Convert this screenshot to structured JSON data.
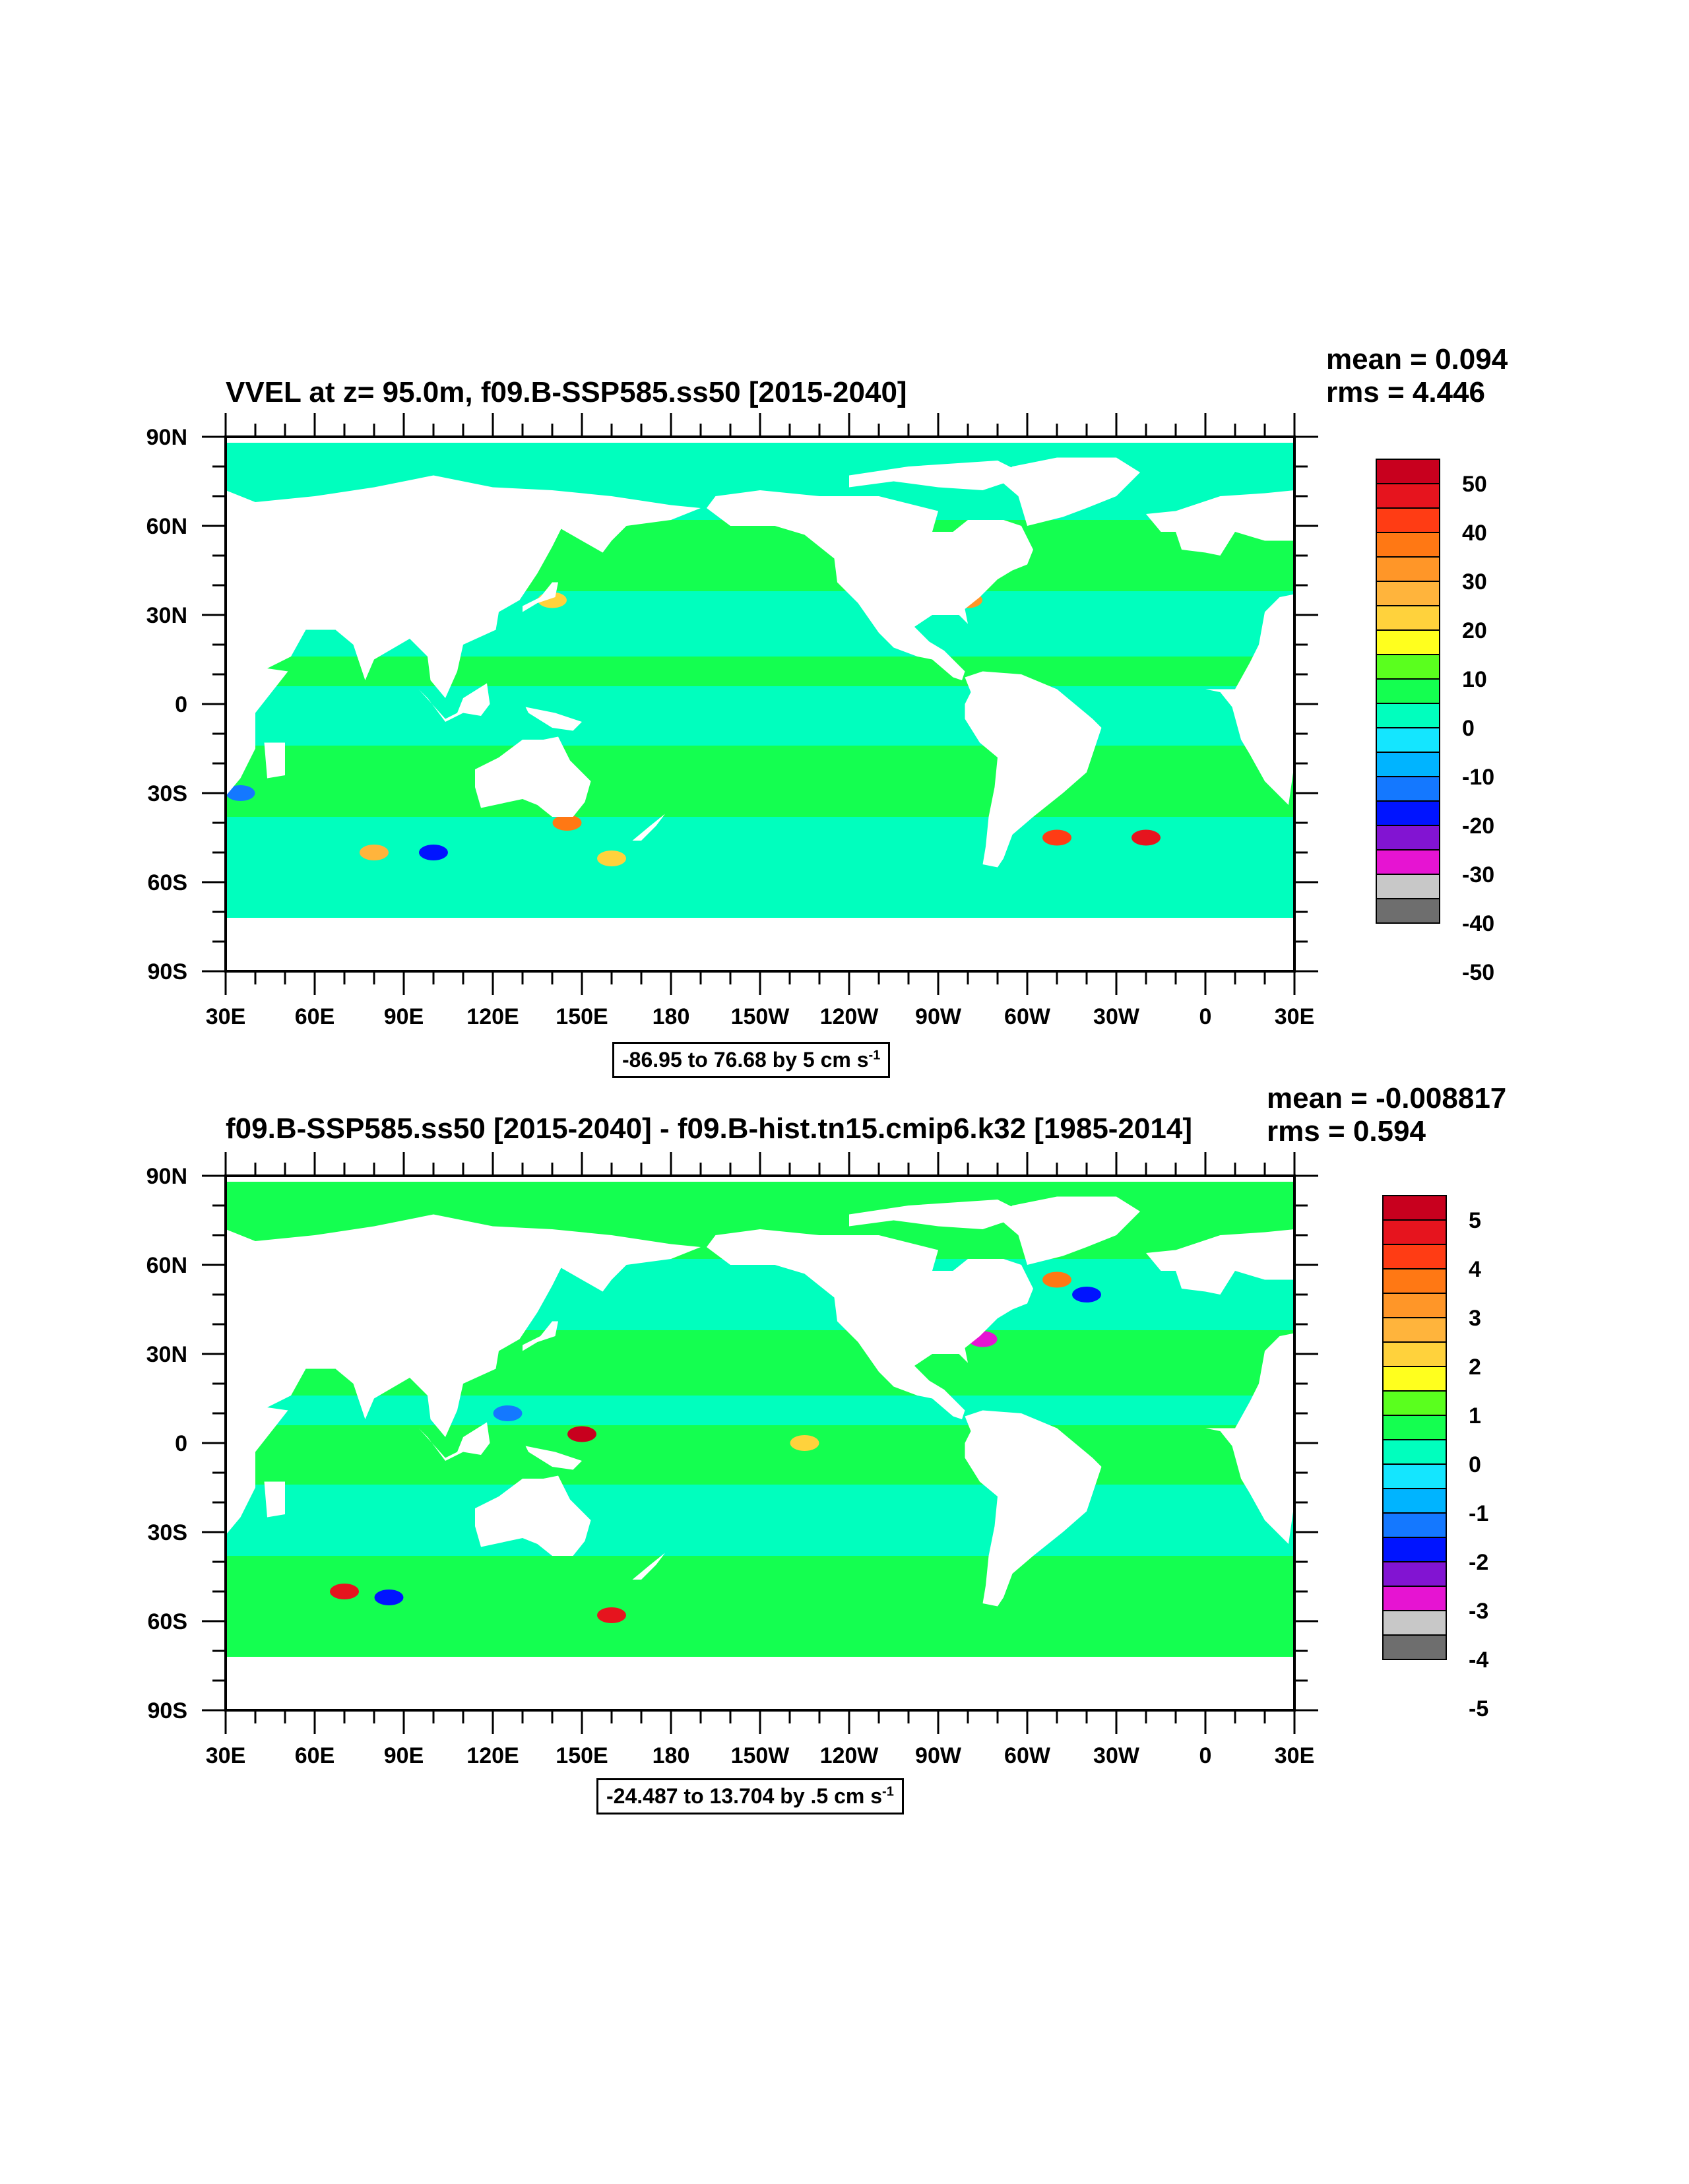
{
  "panels": [
    {
      "title": "VVEL at z=  95.0m, f09.B-SSP585.ss50 [2015-2040]",
      "stats": {
        "mean": "mean = 0.094",
        "rms": "rms = 4.446"
      },
      "contour_info": {
        "text": "-86.95 to 76.68 by 5 cm s",
        "exp": "-1"
      },
      "colorbar_labels": [
        "50",
        "40",
        "30",
        "20",
        "10",
        "0",
        "-10",
        "-20",
        "-30",
        "-40",
        "-50"
      ]
    },
    {
      "title": "f09.B-SSP585.ss50 [2015-2040] - f09.B-hist.tn15.cmip6.k32 [1985-2014]",
      "stats": {
        "mean": "mean = -0.008817",
        "rms": "rms = 0.594"
      },
      "contour_info": {
        "text": "-24.487 to 13.704 by .5 cm s",
        "exp": "-1"
      },
      "colorbar_labels": [
        "5",
        "4",
        "3",
        "2",
        "1",
        "0",
        "-1",
        "-2",
        "-3",
        "-4",
        "-5"
      ]
    }
  ],
  "chart_data": [
    {
      "type": "heatmap",
      "title": "VVEL at z=  95.0m, f09.B-SSP585.ss50 [2015-2040]",
      "x_ticks": [
        "30E",
        "60E",
        "90E",
        "120E",
        "150E",
        "180",
        "150W",
        "120W",
        "90W",
        "60W",
        "30W",
        "0",
        "30E"
      ],
      "y_ticks": [
        "90N",
        "60N",
        "30N",
        "0",
        "30S",
        "60S",
        "90S"
      ],
      "xlim": [
        30,
        390
      ],
      "ylim": [
        -90,
        90
      ],
      "mean": 0.094,
      "rms": 4.446,
      "contour_min": -86.95,
      "contour_max": 76.68,
      "contour_interval": 5,
      "units": "cm s-1",
      "colorbar_levels": [
        -50,
        -40,
        -30,
        -20,
        -10,
        0,
        10,
        20,
        30,
        40,
        50
      ]
    },
    {
      "type": "heatmap",
      "title": "f09.B-SSP585.ss50 [2015-2040] - f09.B-hist.tn15.cmip6.k32 [1985-2014]",
      "x_ticks": [
        "30E",
        "60E",
        "90E",
        "120E",
        "150E",
        "180",
        "150W",
        "120W",
        "90W",
        "60W",
        "30W",
        "0",
        "30E"
      ],
      "y_ticks": [
        "90N",
        "60N",
        "30N",
        "0",
        "30S",
        "60S",
        "90S"
      ],
      "xlim": [
        30,
        390
      ],
      "ylim": [
        -90,
        90
      ],
      "mean": -0.008817,
      "rms": 0.594,
      "contour_min": -24.487,
      "contour_max": 13.704,
      "contour_interval": 0.5,
      "units": "cm s-1",
      "colorbar_levels": [
        -5,
        -4,
        -3,
        -2,
        -1,
        0,
        1,
        2,
        3,
        4,
        5
      ]
    }
  ],
  "colors": {
    "palette_top_to_bottom": [
      "#c8001e",
      "#e6141e",
      "#ff3c14",
      "#ff7814",
      "#ff9628",
      "#ffb43c",
      "#ffd23c",
      "#ffff1e",
      "#5aff1e",
      "#14ff50",
      "#00ffbe",
      "#14e6ff",
      "#00b4ff",
      "#1478ff",
      "#0014ff",
      "#8214d2",
      "#e614d2",
      "#c8c8c8",
      "#6e6e6e"
    ],
    "ocean_main_a": "#14ff50",
    "ocean_main_b": "#00ffbe",
    "land": "#ffffff"
  }
}
